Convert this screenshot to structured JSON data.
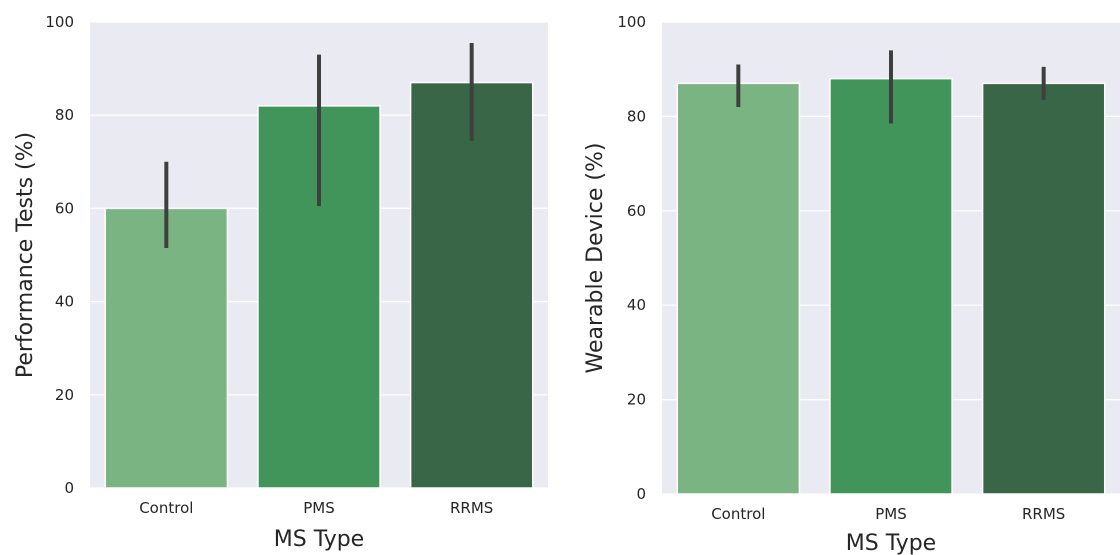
{
  "chart_data": [
    {
      "type": "bar",
      "categories": [
        "Control",
        "PMS",
        "RRMS"
      ],
      "values": [
        60,
        82,
        87
      ],
      "error_bars": [
        [
          51.5,
          70
        ],
        [
          60.5,
          93
        ],
        [
          74.5,
          95.5
        ]
      ],
      "xlabel": "MS Type",
      "ylabel": "Performance Tests (%)",
      "ylim": [
        0,
        100
      ],
      "yticks": [
        0,
        20,
        40,
        60,
        80,
        100
      ],
      "grid": true,
      "colors": [
        "#7ab483",
        "#41955a",
        "#3a6648"
      ]
    },
    {
      "type": "bar",
      "categories": [
        "Control",
        "PMS",
        "RRMS"
      ],
      "values": [
        87,
        88,
        87
      ],
      "error_bars": [
        [
          82,
          91
        ],
        [
          78.5,
          94
        ],
        [
          83.5,
          90.5
        ]
      ],
      "xlabel": "MS Type",
      "ylabel": "Wearable Device (%)",
      "ylim": [
        0,
        100
      ],
      "yticks": [
        0,
        20,
        40,
        60,
        80,
        100
      ],
      "grid": true,
      "colors": [
        "#7ab483",
        "#41955a",
        "#3a6648"
      ]
    }
  ]
}
